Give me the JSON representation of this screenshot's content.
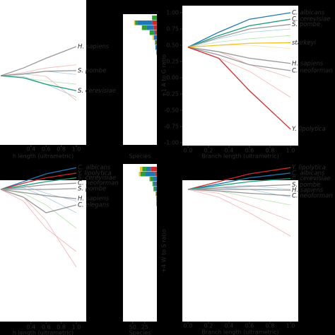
{
  "chart_data": [
    {
      "type": "line",
      "x": [
        0,
        0.3,
        0.6,
        1
      ],
      "xticks": [
        0.4,
        0.6,
        0.8,
        {
          "value": 1,
          "label": "1.0"
        }
      ],
      "ylim": [
        -1,
        1
      ],
      "xlabel": "h length (ultrametric)",
      "series": [
        {
          "color": "#f6b3b3",
          "values": [
            0.03,
            0.06,
            0.02,
            -0.35
          ]
        },
        {
          "color": "#a8cce6",
          "values": [
            0.03,
            0.05,
            0.1,
            0.05
          ]
        },
        {
          "color": "#b9e3b0",
          "values": [
            0.03,
            0.0,
            -0.05,
            -0.1
          ]
        },
        {
          "color": "#f6b3b3",
          "values": [
            0.03,
            0.08,
            0.15,
            0.2
          ]
        },
        {
          "color": "#a8cce6",
          "values": [
            0.03,
            0.02,
            -0.1,
            -0.3
          ]
        },
        {
          "name": "H. sapiens",
          "color": "#999999",
          "values": [
            0.03,
            0.15,
            0.3,
            0.48
          ]
        },
        {
          "name": "S. pombe",
          "color": "#999999",
          "values": [
            0.03,
            0.06,
            0.1,
            0.11
          ]
        },
        {
          "name": "S. cerevisiae",
          "color": "#1a9e77",
          "values": [
            0.03,
            0.0,
            -0.1,
            -0.2
          ]
        }
      ]
    },
    {
      "type": "bar",
      "xlim": [
        70,
        0
      ],
      "xlabel": "Species",
      "categories": [
        null,
        null,
        null,
        null,
        null,
        null,
        null,
        null
      ],
      "series": [
        {
          "color": "#d62728",
          "values": [
            0,
            10,
            6,
            3,
            0,
            2,
            0,
            1
          ]
        },
        {
          "color": "#1f77b4",
          "values": [
            0,
            30,
            15,
            4,
            6,
            0,
            3,
            0
          ]
        },
        {
          "color": "#2ca02c",
          "values": [
            10,
            5,
            10,
            8,
            0,
            2,
            0,
            0
          ]
        },
        {
          "color": "#f2c12e",
          "values": [
            0,
            2,
            0,
            0,
            3,
            0,
            0,
            0
          ]
        }
      ]
    },
    {
      "type": "line",
      "x": [
        0,
        0.3,
        0.6,
        1
      ],
      "xticks": [
        {
          "value": 0,
          "label": "0.0"
        },
        0.2,
        0.4,
        0.6,
        0.8,
        {
          "value": 1,
          "label": "1.0"
        }
      ],
      "ylim": [
        -1,
        1
      ],
      "yticks": [
        {
          "value": -1,
          "label": "-1.00"
        },
        {
          "value": -0.75,
          "label": "-0.75"
        },
        {
          "value": -0.5,
          "label": "-0.50"
        },
        {
          "value": -0.25,
          "label": "-0.25"
        },
        {
          "value": 0,
          "label": "0.00"
        },
        0.25,
        {
          "value": 0.5,
          "label": "0.50"
        },
        0.75,
        {
          "value": 1,
          "label": "1.00"
        }
      ],
      "ylabel": "+1 A to G ratio",
      "xlabel": "Branch length (ultrametric)",
      "series": [
        {
          "color": "#f6b3b3",
          "values": [
            0.47,
            0.3,
            0.1,
            -0.3
          ]
        },
        {
          "color": "#a8cce6",
          "values": [
            0.47,
            0.6,
            0.7,
            0.75
          ]
        },
        {
          "color": "#b9e3b0",
          "values": [
            0.47,
            0.55,
            0.6,
            0.65
          ]
        },
        {
          "color": "#f6b3b3",
          "values": [
            0.47,
            0.4,
            0.2,
            0.0
          ]
        },
        {
          "color": "#fbe3a0",
          "values": [
            0.47,
            0.5,
            0.5,
            0.45
          ]
        },
        {
          "name": "C. albicans",
          "color": "#1f77b4",
          "values": [
            0.47,
            0.7,
            0.9,
            1.0
          ]
        },
        {
          "name": "C. cerevisiae",
          "color": "#1a9e77",
          "values": [
            0.47,
            0.65,
            0.8,
            0.9
          ]
        },
        {
          "name": "S. pombe",
          "color": "#999999",
          "values": [
            0.47,
            0.62,
            0.75,
            0.82
          ]
        },
        {
          "name": "starkeyi",
          "color": "#f2c12e",
          "values": [
            0.47,
            0.5,
            0.53,
            0.54
          ]
        },
        {
          "name": "H. sapiens",
          "color": "#999999",
          "values": [
            0.47,
            0.4,
            0.3,
            0.22
          ]
        },
        {
          "name": "C. neoforman",
          "color": "#999999",
          "values": [
            0.47,
            0.35,
            0.2,
            0.11
          ]
        },
        {
          "name": "Y. lipolytica",
          "color": "#d62728",
          "values": [
            0.47,
            0.3,
            -0.2,
            -0.79
          ]
        }
      ]
    },
    {
      "type": "line",
      "x": [
        0,
        0.3,
        0.6,
        1
      ],
      "xticks": [
        0.4,
        0.6,
        0.8,
        {
          "value": 1,
          "label": "1.0"
        }
      ],
      "ylim": [
        -1,
        1
      ],
      "xlabel": "h length (ultrametric)",
      "series": [
        {
          "color": "#f6b3b3",
          "values": [
            0.7,
            0.6,
            0.3,
            -0.3
          ]
        },
        {
          "color": "#a8cce6",
          "values": [
            0.7,
            0.72,
            0.6,
            0.4
          ]
        },
        {
          "color": "#b9e3b0",
          "values": [
            0.7,
            0.65,
            0.5,
            0.2
          ]
        },
        {
          "color": "#f6b3b3",
          "values": [
            0.7,
            0.55,
            0.2,
            -0.1
          ]
        },
        {
          "color": "#a8cce6",
          "values": [
            0.7,
            0.75,
            0.65,
            0.55
          ]
        },
        {
          "name": "C. albicans",
          "color": "#1f77b4",
          "values": [
            0.7,
            0.8,
            0.9,
            0.98
          ]
        },
        {
          "name": "Y. lipolytica",
          "color": "#d62728",
          "values": [
            0.7,
            0.78,
            0.85,
            0.91
          ]
        },
        {
          "name": "S. cerevisiae",
          "color": "#1a9e77",
          "values": [
            0.7,
            0.75,
            0.8,
            0.85
          ]
        },
        {
          "name": "C. neoforman",
          "color": "#999999",
          "values": [
            0.7,
            0.73,
            0.76,
            0.78
          ]
        },
        {
          "name": "S. pombe",
          "color": "#999999",
          "values": [
            0.7,
            0.7,
            0.7,
            0.71
          ]
        },
        {
          "name": "H. sapiens",
          "color": "#999999",
          "values": [
            0.7,
            0.66,
            0.62,
            0.58
          ]
        },
        {
          "name": "C. elegans",
          "color": "#999999",
          "values": [
            0.7,
            0.6,
            0.4,
            0.5
          ]
        }
      ]
    },
    {
      "type": "bar",
      "xlim": [
        70,
        0
      ],
      "xlabel": "Species",
      "xticks": [
        50,
        25
      ],
      "categories": [
        null,
        null,
        null,
        null,
        null,
        null,
        null,
        null
      ],
      "series": [
        {
          "color": "#d62728",
          "values": [
            12,
            4,
            0,
            2,
            0,
            0,
            1,
            0
          ]
        },
        {
          "color": "#1f77b4",
          "values": [
            10,
            20,
            8,
            5,
            3,
            2,
            0,
            1
          ]
        },
        {
          "color": "#2ca02c",
          "values": [
            8,
            10,
            6,
            2,
            4,
            0,
            0,
            0
          ]
        },
        {
          "color": "#f2c12e",
          "values": [
            5,
            3,
            2,
            0,
            0,
            1,
            0,
            0
          ]
        }
      ]
    },
    {
      "type": "line",
      "x": [
        0,
        0.3,
        0.6,
        1
      ],
      "xticks": [
        {
          "value": 0,
          "label": "0.0"
        },
        0.2,
        0.4,
        0.6,
        0.8,
        {
          "value": 1,
          "label": "1.0"
        }
      ],
      "ylim": [
        -1,
        1
      ],
      "ylabel": "+4 W to S ratio",
      "xlabel": "Branch length (ultrametric)",
      "series": [
        {
          "color": "#f6b3b3",
          "values": [
            0.7,
            0.6,
            0.4,
            0.1
          ]
        },
        {
          "color": "#a8cce6",
          "values": [
            0.7,
            0.72,
            0.7,
            0.6
          ]
        },
        {
          "color": "#b9e3b0",
          "values": [
            0.7,
            0.68,
            0.6,
            0.5
          ]
        },
        {
          "color": "#f6b3b3",
          "values": [
            0.7,
            0.65,
            0.5,
            0.3
          ]
        },
        {
          "color": "#a8cce6",
          "values": [
            0.7,
            0.74,
            0.75,
            0.7
          ]
        },
        {
          "name": "Y. lipolytica",
          "color": "#d62728",
          "values": [
            0.7,
            0.8,
            0.9,
            0.98
          ]
        },
        {
          "name": "C. albicans",
          "color": "#1f77b4",
          "values": [
            0.7,
            0.77,
            0.85,
            0.91
          ]
        },
        {
          "name": "C. cerevisiae",
          "color": "#1a9e77",
          "values": [
            0.7,
            0.75,
            0.8,
            0.84
          ]
        },
        {
          "name": "S. pombe",
          "color": "#999999",
          "values": [
            0.7,
            0.72,
            0.74,
            0.76
          ]
        },
        {
          "name": "H. sapiens",
          "color": "#999999",
          "values": [
            0.7,
            0.7,
            0.7,
            0.69
          ]
        },
        {
          "name": "C. neoforman",
          "color": "#999999",
          "values": [
            0.7,
            0.68,
            0.65,
            0.62
          ]
        }
      ]
    }
  ]
}
